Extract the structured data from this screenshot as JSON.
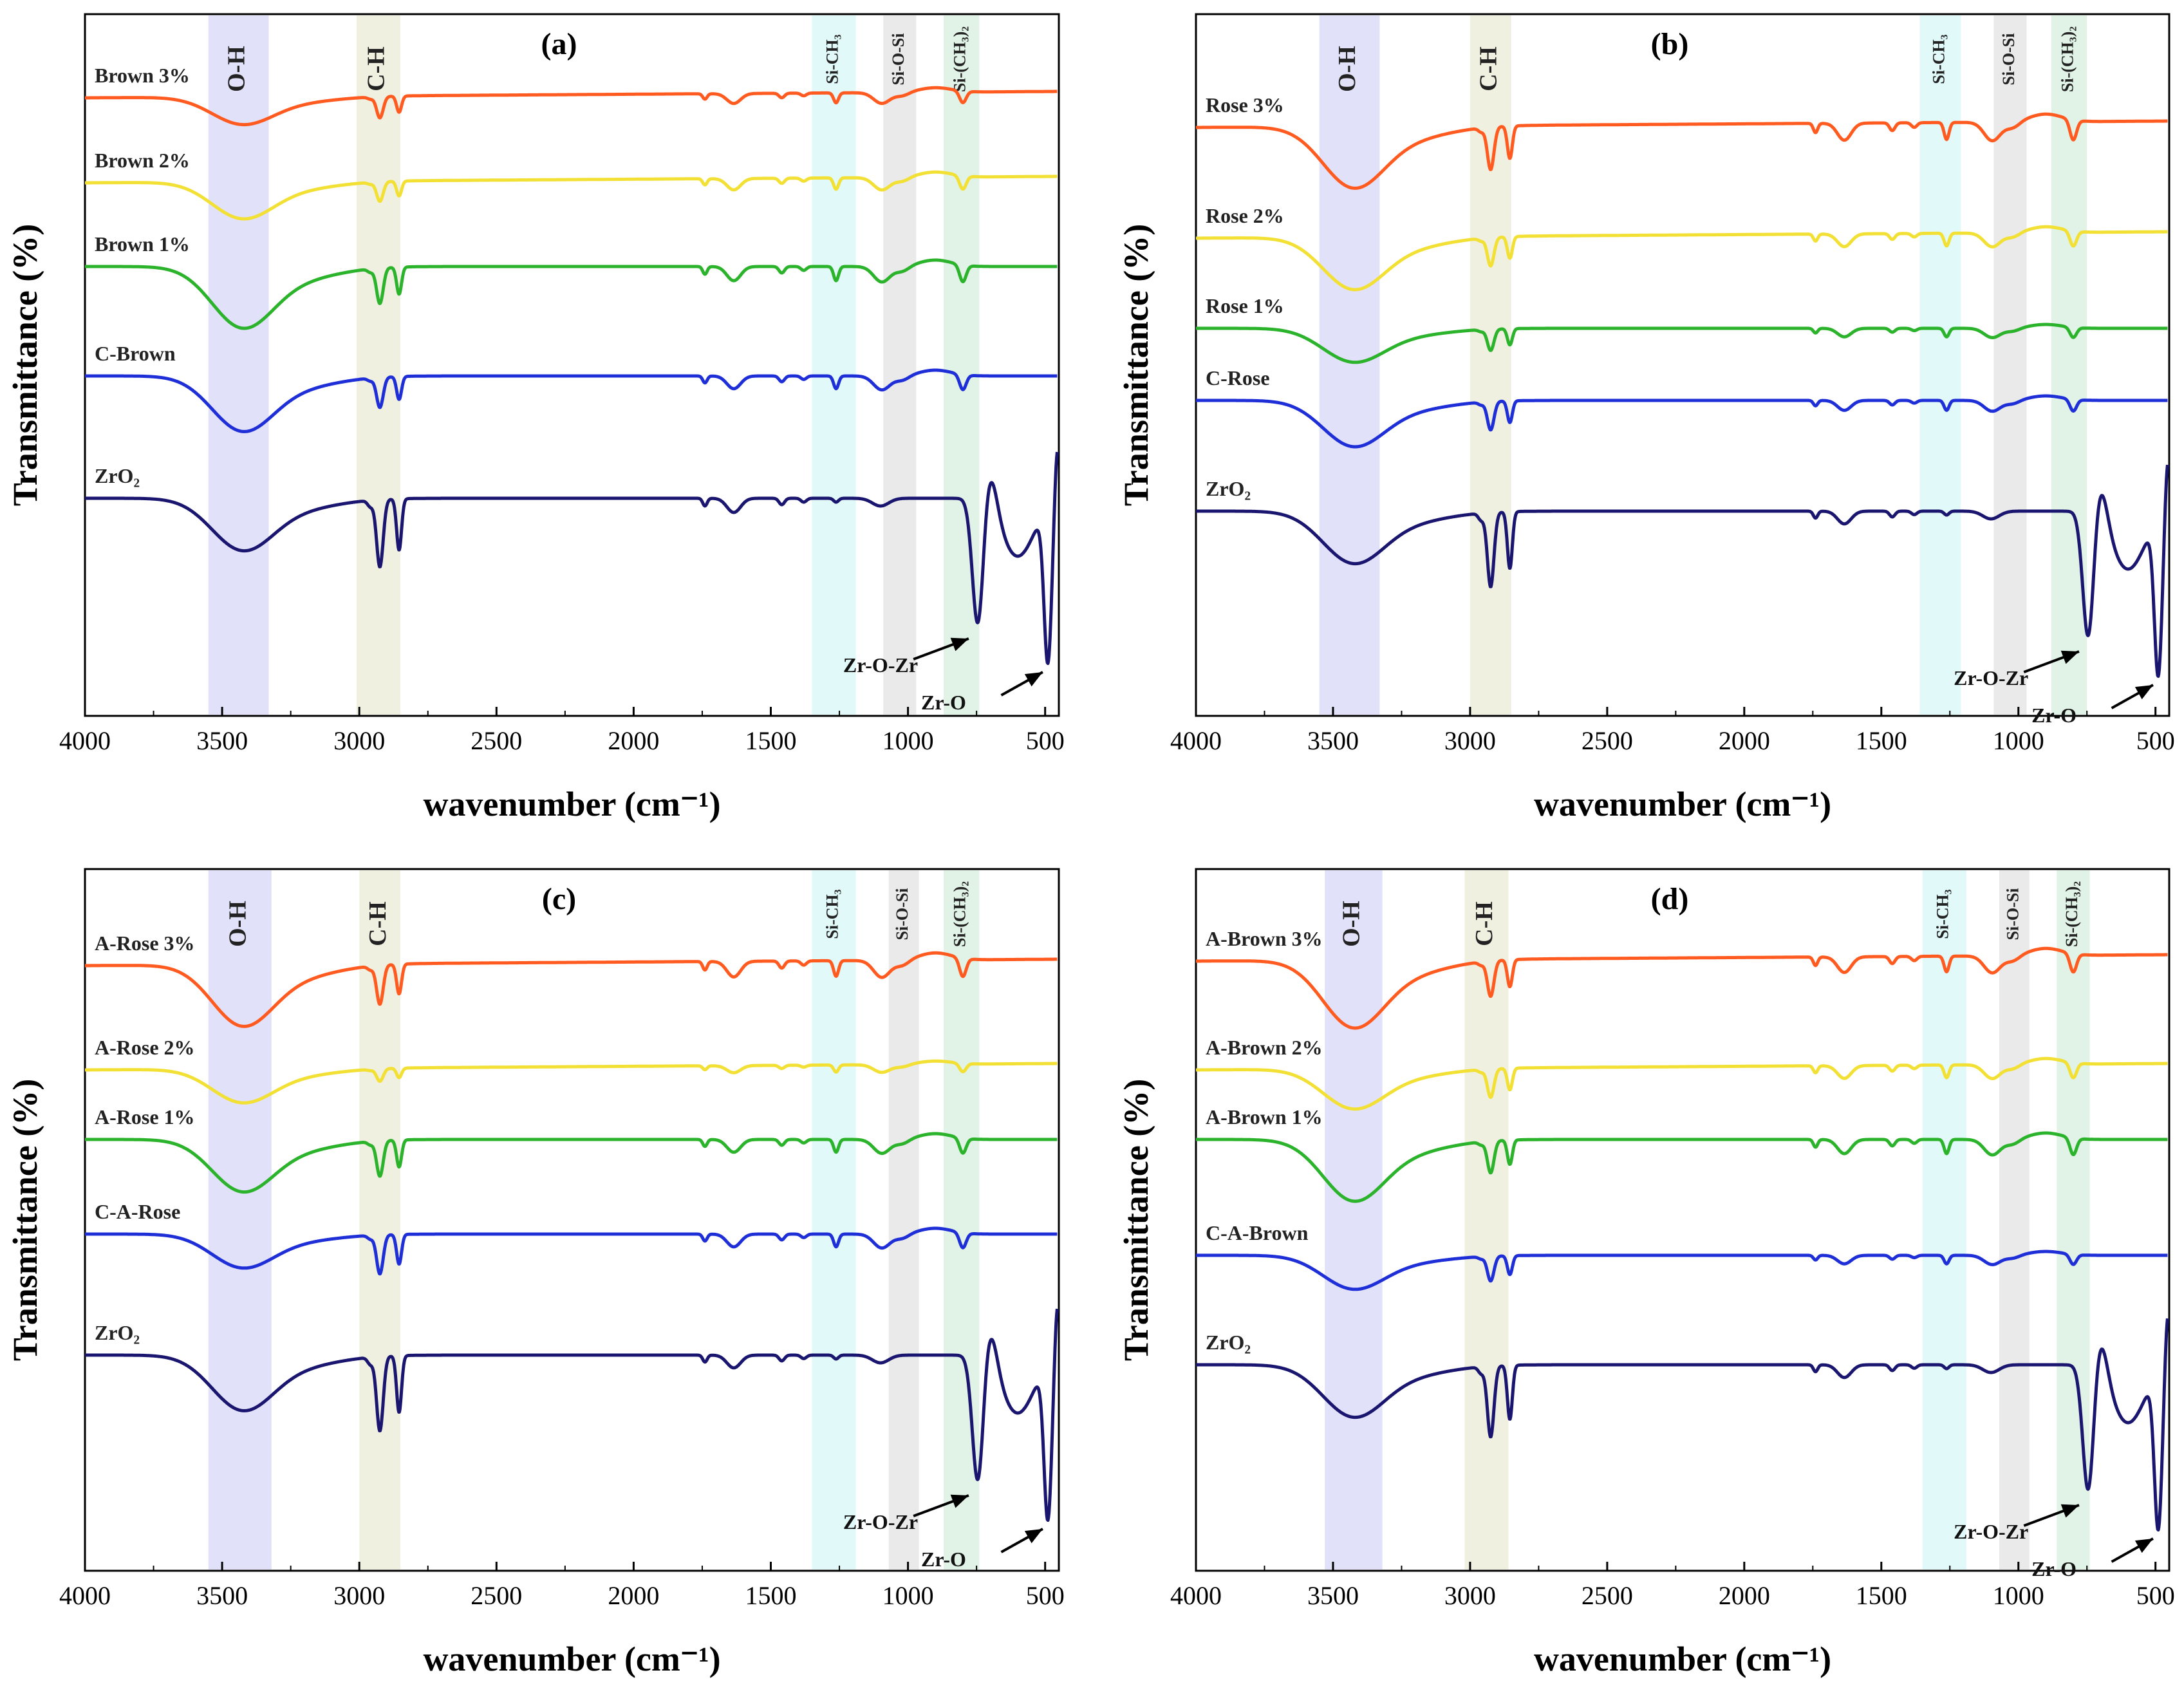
{
  "chart_data": [
    {
      "panel": "(a)",
      "type": "line",
      "xlabel": "wavenumber (cm⁻¹)",
      "ylabel": "Transmittance (%)",
      "xlim": [
        4000,
        450
      ],
      "xticks": [
        4000,
        3500,
        3000,
        2500,
        2000,
        1500,
        1000,
        500
      ],
      "bands": [
        {
          "label": "O-H",
          "from": 3550,
          "to": 3330,
          "color": "#dcdcf8"
        },
        {
          "label": "C-H",
          "from": 3010,
          "to": 2850,
          "color": "#ededdc"
        },
        {
          "label": "Si-CH₃",
          "from": 1350,
          "to": 1190,
          "color": "#dcf8f8"
        },
        {
          "label": "Si-O-Si",
          "from": 1090,
          "to": 970,
          "color": "#e6e6e6"
        },
        {
          "label": "Si-(CH₃)₂",
          "from": 870,
          "to": 740,
          "color": "#dcf0e2"
        }
      ],
      "series": [
        {
          "name": "Brown 3%",
          "color": "#ff5a1f"
        },
        {
          "name": "Brown 2%",
          "color": "#f2e035"
        },
        {
          "name": "Brown 1%",
          "color": "#2cb32c"
        },
        {
          "name": "C-Brown",
          "color": "#1f2fd8"
        },
        {
          "name": "ZrO₂",
          "color": "#1a1670"
        }
      ],
      "annotations": [
        "Zr-O-Zr",
        "Zr-O"
      ]
    },
    {
      "panel": "(b)",
      "type": "line",
      "xlabel": "wavenumber (cm⁻¹)",
      "ylabel": "Transmittance (%)",
      "xlim": [
        4000,
        450
      ],
      "xticks": [
        4000,
        3500,
        3000,
        2500,
        2000,
        1500,
        1000,
        500
      ],
      "bands": [
        {
          "label": "O-H",
          "from": 3550,
          "to": 3330,
          "color": "#dcdcf8"
        },
        {
          "label": "C-H",
          "from": 3000,
          "to": 2850,
          "color": "#ededdc"
        },
        {
          "label": "Si-CH₃",
          "from": 1360,
          "to": 1210,
          "color": "#dcf8f8"
        },
        {
          "label": "Si-O-Si",
          "from": 1090,
          "to": 970,
          "color": "#e6e6e6"
        },
        {
          "label": "Si-(CH₃)₂",
          "from": 880,
          "to": 750,
          "color": "#dcf0e2"
        }
      ],
      "series": [
        {
          "name": "Rose 3%",
          "color": "#ff5a1f"
        },
        {
          "name": "Rose 2%",
          "color": "#f2e035"
        },
        {
          "name": "Rose 1%",
          "color": "#2cb32c"
        },
        {
          "name": "C-Rose",
          "color": "#1f2fd8"
        },
        {
          "name": "ZrO₂",
          "color": "#1a1670"
        }
      ],
      "annotations": [
        "Zr-O-Zr",
        "Zr-O"
      ]
    },
    {
      "panel": "(c)",
      "type": "line",
      "xlabel": "wavenumber (cm⁻¹)",
      "ylabel": "Transmittance (%)",
      "xlim": [
        4000,
        450
      ],
      "xticks": [
        4000,
        3500,
        3000,
        2500,
        2000,
        1500,
        1000,
        500
      ],
      "bands": [
        {
          "label": "O-H",
          "from": 3550,
          "to": 3320,
          "color": "#dcdcf8"
        },
        {
          "label": "C-H",
          "from": 3000,
          "to": 2850,
          "color": "#ededdc"
        },
        {
          "label": "Si-CH₃",
          "from": 1350,
          "to": 1190,
          "color": "#dcf8f8"
        },
        {
          "label": "Si-O-Si",
          "from": 1070,
          "to": 960,
          "color": "#e6e6e6"
        },
        {
          "label": "Si-(CH₃)₂",
          "from": 870,
          "to": 740,
          "color": "#dcf0e2"
        }
      ],
      "series": [
        {
          "name": "A-Rose 3%",
          "color": "#ff5a1f"
        },
        {
          "name": "A-Rose 2%",
          "color": "#f2e035"
        },
        {
          "name": "A-Rose 1%",
          "color": "#2cb32c"
        },
        {
          "name": "C-A-Rose",
          "color": "#1f2fd8"
        },
        {
          "name": "ZrO₂",
          "color": "#1a1670"
        }
      ],
      "annotations": [
        "Zr-O-Zr",
        "Zr-O"
      ]
    },
    {
      "panel": "(d)",
      "type": "line",
      "xlabel": "wavenumber (cm⁻¹)",
      "ylabel": "Transmittance (%)",
      "xlim": [
        4000,
        450
      ],
      "xticks": [
        4000,
        3500,
        3000,
        2500,
        2000,
        1500,
        1000,
        500
      ],
      "bands": [
        {
          "label": "O-H",
          "from": 3530,
          "to": 3320,
          "color": "#dcdcf8"
        },
        {
          "label": "C-H",
          "from": 3020,
          "to": 2860,
          "color": "#ededdc"
        },
        {
          "label": "Si-CH₃",
          "from": 1350,
          "to": 1190,
          "color": "#dcf8f8"
        },
        {
          "label": "Si-O-Si",
          "from": 1070,
          "to": 960,
          "color": "#e6e6e6"
        },
        {
          "label": "Si-(CH₃)₂",
          "from": 860,
          "to": 740,
          "color": "#dcf0e2"
        }
      ],
      "series": [
        {
          "name": "A-Brown 3%",
          "color": "#ff5a1f"
        },
        {
          "name": "A-Brown 2%",
          "color": "#f2e035"
        },
        {
          "name": "A-Brown 1%",
          "color": "#2cb32c"
        },
        {
          "name": "C-A-Brown",
          "color": "#1f2fd8"
        },
        {
          "name": "ZrO₂",
          "color": "#1a1670"
        }
      ],
      "annotations": [
        "Zr-O-Zr",
        "Zr-O"
      ]
    }
  ]
}
